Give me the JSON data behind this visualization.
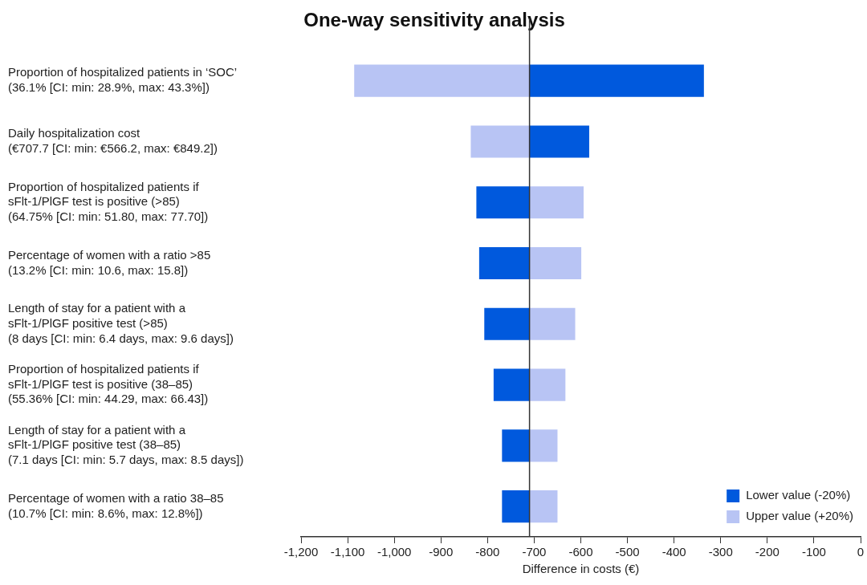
{
  "chart_data": {
    "type": "bar",
    "orientation": "horizontal",
    "title": "One-way sensitivity analysis",
    "xlabel": "Difference in costs (€)",
    "categories": [
      "Proportion of hospitalized patients in ‘SOC’\n(36.1% [CI: min: 28.9%, max: 43.3%])",
      "Daily hospitalization cost\n(€707.7 [CI: min: €566.2, max: €849.2])",
      "Proportion of hospitalized patients if\nsFlt-1/PlGF test is positive (>85)\n(64.75% [CI: min: 51.80, max: 77.70])",
      "Percentage of women with a ratio >85\n(13.2% [CI: min: 10.6, max: 15.8])",
      "Length of stay for a patient with a\nsFlt-1/PlGF positive test (>85)\n(8 days [CI: min: 6.4 days, max: 9.6 days])",
      "Proportion of hospitalized patients if\nsFlt-1/PlGF test is positive (38–85)\n(55.36% [CI: min: 44.29, max: 66.43])",
      "Length of stay for a patient with a\nsFlt-1/PlGF positive test (38–85)\n(7.1 days [CI: min: 5.7 days, max: 8.5 days])",
      "Percentage of women with a ratio 38–85\n(10.7% [CI: min: 8.6%, max: 12.8%])"
    ],
    "series": [
      {
        "name": "Lower value (-20%)",
        "color": "#0059dd",
        "base": [
          -710,
          -710,
          -710,
          -710,
          -710,
          -710,
          -710,
          -710
        ],
        "values": [
          374,
          128,
          -114,
          -108,
          -97,
          -77,
          -59,
          -59
        ]
      },
      {
        "name": "Upper value (+20%)",
        "color": "#b8c4f4",
        "base": [
          -710,
          -710,
          -710,
          -710,
          -710,
          -710,
          -710,
          -710
        ],
        "values": [
          -376,
          -126,
          116,
          111,
          98,
          77,
          60,
          60
        ]
      }
    ],
    "xlim": [
      -1200,
      0
    ],
    "xticks": [
      {
        "value": -1200,
        "label": "-1,200"
      },
      {
        "value": -1100,
        "label": "-1,100"
      },
      {
        "value": -1000,
        "label": "-1,000"
      },
      -900,
      -800,
      -700,
      -600,
      -500,
      -400,
      -300,
      -200,
      -100,
      0
    ],
    "ref_lines": [
      {
        "axis": "x",
        "value": -710,
        "color": "#333333"
      }
    ],
    "grid": false,
    "legend": "bottom right"
  }
}
